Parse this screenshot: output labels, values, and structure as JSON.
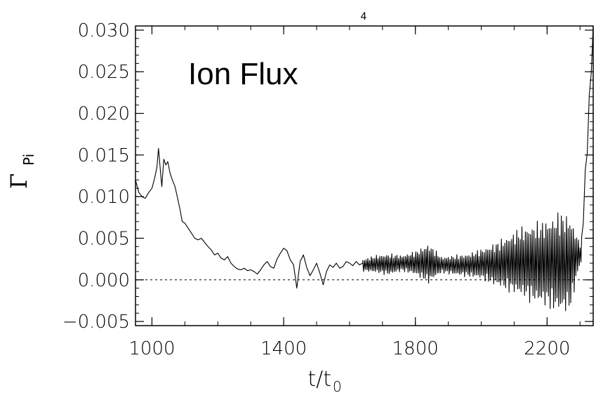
{
  "chart_data": {
    "type": "line",
    "top_label": "4",
    "annotation": "Ion Flux",
    "ylabel_symbol": "Γ",
    "ylabel_sub": "Pi",
    "xlabel_main": "t/t",
    "xlabel_sub": "0",
    "xlim": [
      950,
      2340
    ],
    "ylim": [
      -0.0055,
      0.0305
    ],
    "xticks": [
      1000,
      1400,
      1800,
      2200
    ],
    "xtick_labels": [
      "1000",
      "1400",
      "1800",
      "2200"
    ],
    "yticks": [
      -0.005,
      0.0,
      0.005,
      0.01,
      0.015,
      0.02,
      0.025,
      0.03
    ],
    "ytick_labels": [
      "−0.005",
      "0.000",
      "0.005",
      "0.010",
      "0.015",
      "0.020",
      "0.025",
      "0.030"
    ],
    "reference_line": {
      "y": 0.0,
      "style": "dashed"
    },
    "series": [
      {
        "x": [
          950,
          960,
          970,
          980,
          990,
          1000,
          1008,
          1015,
          1020,
          1026,
          1030,
          1036,
          1042,
          1048,
          1055,
          1062,
          1070,
          1078,
          1085,
          1092,
          1100,
          1110,
          1120,
          1130,
          1140,
          1150,
          1160,
          1170,
          1180,
          1190,
          1200,
          1210,
          1220,
          1230,
          1240,
          1250,
          1260,
          1270,
          1280,
          1290,
          1300,
          1310,
          1320,
          1330,
          1340,
          1350,
          1360,
          1370,
          1380,
          1390,
          1400,
          1410,
          1420,
          1430,
          1440,
          1450,
          1460,
          1470,
          1480,
          1490,
          1500,
          1510,
          1520,
          1530,
          1540,
          1550,
          1560,
          1570,
          1580,
          1590,
          1600,
          1610,
          1620,
          1630,
          1640
        ],
        "y": [
          0.012,
          0.0105,
          0.01,
          0.0098,
          0.0105,
          0.011,
          0.0122,
          0.0135,
          0.0158,
          0.013,
          0.0112,
          0.0145,
          0.0138,
          0.0142,
          0.0128,
          0.012,
          0.0112,
          0.0098,
          0.0085,
          0.007,
          0.0068,
          0.0062,
          0.0056,
          0.005,
          0.0048,
          0.005,
          0.0045,
          0.004,
          0.0036,
          0.003,
          0.0032,
          0.0026,
          0.0024,
          0.0028,
          0.002,
          0.0016,
          0.0013,
          0.0012,
          0.0014,
          0.0011,
          0.0012,
          0.001,
          0.0007,
          0.0012,
          0.0018,
          0.0022,
          0.0016,
          0.0014,
          0.0025,
          0.0032,
          0.0038,
          0.0035,
          0.0024,
          0.0018,
          -0.001,
          0.0022,
          0.003,
          0.0015,
          0.0005,
          0.0012,
          0.002,
          0.0008,
          -0.0006,
          0.001,
          0.0018,
          0.0015,
          0.002,
          0.0014,
          0.0016,
          0.0022,
          0.002,
          0.0017,
          0.0022,
          0.0018,
          0.002
        ]
      }
    ],
    "oscillation_segment": {
      "x_start": 1640,
      "x_end": 2305,
      "note_points": [
        [
          1640,
          0.001,
          0.0025
        ],
        [
          1680,
          0.0008,
          0.003
        ],
        [
          1720,
          0.0005,
          0.0032
        ],
        [
          1760,
          0.001,
          0.003
        ],
        [
          1800,
          0.0005,
          0.0035
        ],
        [
          1840,
          -0.0005,
          0.0045
        ],
        [
          1880,
          0.0008,
          0.0028
        ],
        [
          1920,
          0.0005,
          0.003
        ],
        [
          1960,
          0.0003,
          0.0032
        ],
        [
          2000,
          0.0,
          0.0038
        ],
        [
          2040,
          -0.0008,
          0.0045
        ],
        [
          2080,
          -0.0015,
          0.0055
        ],
        [
          2120,
          -0.0022,
          0.0065
        ],
        [
          2160,
          -0.003,
          0.007
        ],
        [
          2200,
          -0.0035,
          0.0075
        ],
        [
          2240,
          -0.0045,
          0.0085
        ],
        [
          2270,
          -0.004,
          0.008
        ],
        [
          2300,
          0.0018,
          0.0045
        ]
      ]
    },
    "tail": {
      "x": [
        2305,
        2310,
        2316,
        2322,
        2328,
        2334,
        2340
      ],
      "y": [
        0.004,
        0.008,
        0.012,
        0.0165,
        0.021,
        0.026,
        0.03
      ]
    }
  }
}
